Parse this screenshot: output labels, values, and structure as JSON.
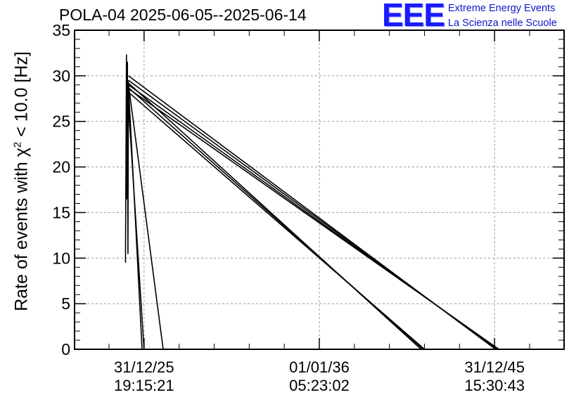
{
  "title": "POLA-04 2025-06-05--2025-06-14",
  "logo": {
    "mark": "EEE",
    "line1": "Extreme Energy Events",
    "line2": "La Scienza nelle Scuole",
    "color": "#1a1aff"
  },
  "chart_data": {
    "type": "line",
    "title": "POLA-04 2025-06-05--2025-06-14",
    "ylabel_prefix": "Rate of events with",
    "ylabel_chi": "χ",
    "ylabel_sup": "2",
    "ylabel_suffix": " < 10.0 [Hz]",
    "xlabel": "",
    "ylim": [
      0,
      35
    ],
    "yticks": [
      "0",
      "5",
      "10",
      "15",
      "20",
      "25",
      "30",
      "35"
    ],
    "xticks": [
      {
        "t": 0.142,
        "date": "31/12/25",
        "time": "19:15:21"
      },
      {
        "t": 0.5,
        "date": "01/01/36",
        "time": "05:23:02"
      },
      {
        "t": 0.858,
        "date": "31/12/45",
        "time": "15:30:43"
      }
    ],
    "grid": true,
    "line_color": "#000000",
    "series": [
      {
        "values": [
          [
            0.104,
            9.5
          ],
          [
            0.106,
            32.3
          ],
          [
            0.107,
            16.5
          ],
          [
            0.108,
            31.5
          ],
          [
            0.109,
            10.5
          ],
          [
            0.11,
            29.0
          ]
        ]
      },
      {
        "values": [
          [
            0.11,
            29.0
          ],
          [
            0.138,
            0.0
          ]
        ]
      },
      {
        "values": [
          [
            0.108,
            28.5
          ],
          [
            0.142,
            0.0
          ]
        ]
      },
      {
        "values": [
          [
            0.109,
            29.5
          ],
          [
            0.181,
            0.0
          ]
        ]
      },
      {
        "values": [
          [
            0.11,
            29.2
          ],
          [
            0.708,
            0.0
          ]
        ]
      },
      {
        "values": [
          [
            0.11,
            28.7
          ],
          [
            0.712,
            0.0
          ]
        ]
      },
      {
        "values": [
          [
            0.11,
            28.2
          ],
          [
            0.715,
            0.0
          ]
        ]
      },
      {
        "values": [
          [
            0.11,
            30.0
          ],
          [
            0.86,
            0.0
          ]
        ]
      },
      {
        "values": [
          [
            0.11,
            29.5
          ],
          [
            0.863,
            0.0
          ]
        ]
      },
      {
        "values": [
          [
            0.11,
            29.0
          ],
          [
            0.865,
            0.0
          ]
        ]
      },
      {
        "values": [
          [
            0.11,
            28.6
          ],
          [
            0.867,
            0.0
          ]
        ]
      }
    ]
  }
}
